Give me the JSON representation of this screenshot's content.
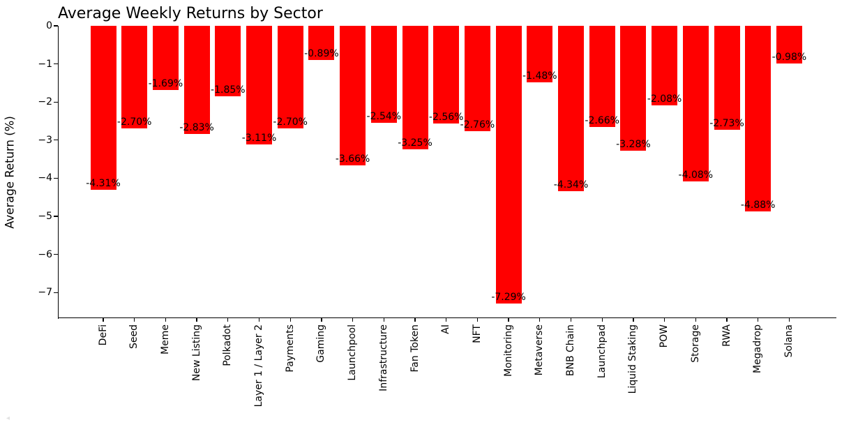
{
  "chart_data": {
    "type": "bar",
    "title": "Average Weekly Returns by Sector",
    "xlabel": "",
    "ylabel": "Average Return (%)",
    "bar_color": "#ff0000",
    "text_color": "#000000",
    "grid": false,
    "legend": null,
    "ylim": [
      -7.66,
      0
    ],
    "yticks": [
      0,
      -1,
      -2,
      -3,
      -4,
      -5,
      -6,
      -7
    ],
    "ytick_labels": [
      "0",
      "−1",
      "−2",
      "−3",
      "−4",
      "−5",
      "−6",
      "−7"
    ],
    "categories": [
      "DeFi",
      "Seed",
      "Meme",
      "New Listing",
      "Polkadot",
      "Layer 1 / Layer 2",
      "Payments",
      "Gaming",
      "Launchpool",
      "Infrastructure",
      "Fan Token",
      "AI",
      "NFT",
      "Monitoring",
      "Metaverse",
      "BNB Chain",
      "Launchpad",
      "Liquid Staking",
      "POW",
      "Storage",
      "RWA",
      "Megadrop",
      "Solana"
    ],
    "values": [
      -4.31,
      -2.7,
      -1.69,
      -2.83,
      -1.85,
      -3.11,
      -2.7,
      -0.89,
      -3.66,
      -2.54,
      -3.25,
      -2.56,
      -2.76,
      -7.29,
      -1.48,
      -4.34,
      -2.66,
      -3.28,
      -2.08,
      -4.08,
      -2.73,
      -4.88,
      -0.98
    ],
    "bar_labels": [
      "-4.31%",
      "-2.70%",
      "-1.69%",
      "-2.83%",
      "-1.85%",
      "-3.11%",
      "-2.70%",
      "-0.89%",
      "-3.66%",
      "-2.54%",
      "-3.25%",
      "-2.56%",
      "-2.76%",
      "-7.29%",
      "-1.48%",
      "-4.34%",
      "-2.66%",
      "-3.28%",
      "-2.08%",
      "-4.08%",
      "-2.73%",
      "-4.88%",
      "-0.98%"
    ]
  },
  "artifact": {
    "glyph": "◂"
  }
}
